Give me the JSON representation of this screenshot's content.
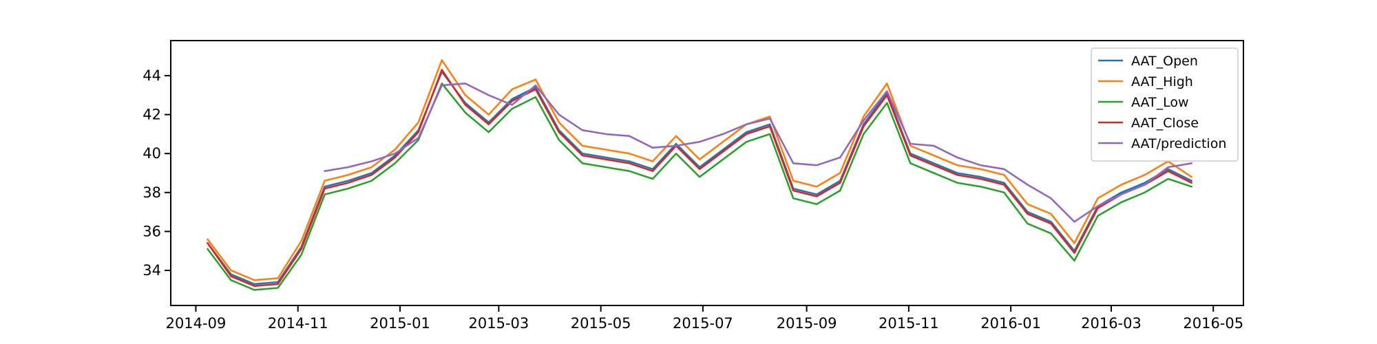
{
  "chart_data": {
    "type": "line",
    "title": "",
    "xlabel": "",
    "ylabel": "",
    "x_range": [
      "2014-08-17",
      "2016-05-19"
    ],
    "ylim": [
      32.2,
      45.8
    ],
    "grid": false,
    "legend_position": "top-right",
    "x_ticks": [
      "2014-09",
      "2014-11",
      "2015-01",
      "2015-03",
      "2015-05",
      "2015-07",
      "2015-09",
      "2015-11",
      "2016-01",
      "2016-03",
      "2016-05"
    ],
    "y_ticks": [
      34,
      36,
      38,
      40,
      42,
      44
    ],
    "dates": [
      "2014-09-08",
      "2014-09-22",
      "2014-10-06",
      "2014-10-20",
      "2014-11-03",
      "2014-11-17",
      "2014-12-01",
      "2014-12-15",
      "2014-12-29",
      "2015-01-12",
      "2015-01-26",
      "2015-02-09",
      "2015-02-23",
      "2015-03-09",
      "2015-03-23",
      "2015-04-06",
      "2015-04-20",
      "2015-05-04",
      "2015-05-18",
      "2015-06-01",
      "2015-06-15",
      "2015-06-29",
      "2015-07-13",
      "2015-07-27",
      "2015-08-10",
      "2015-08-24",
      "2015-09-07",
      "2015-09-21",
      "2015-10-05",
      "2015-10-19",
      "2015-11-02",
      "2015-11-16",
      "2015-11-30",
      "2015-12-14",
      "2015-12-28",
      "2016-01-11",
      "2016-01-25",
      "2016-02-08",
      "2016-02-22",
      "2016-03-07",
      "2016-03-21",
      "2016-04-04",
      "2016-04-18"
    ],
    "series": [
      {
        "name": "AAT_Open",
        "color": "#1f77b4",
        "values": [
          35.4,
          33.8,
          33.3,
          33.4,
          35.2,
          38.3,
          38.6,
          39.0,
          39.9,
          41.2,
          44.2,
          42.6,
          41.6,
          42.8,
          43.4,
          41.2,
          40.0,
          39.8,
          39.6,
          39.2,
          40.5,
          39.3,
          40.2,
          41.1,
          41.5,
          38.2,
          37.9,
          38.6,
          41.5,
          43.1,
          40.0,
          39.5,
          39.0,
          38.8,
          38.5,
          37.0,
          36.5,
          35.0,
          37.3,
          38.0,
          38.5,
          39.2,
          38.6
        ]
      },
      {
        "name": "AAT_High",
        "color": "#ff7f0e",
        "values": [
          35.6,
          34.0,
          33.5,
          33.6,
          35.5,
          38.6,
          38.9,
          39.3,
          40.2,
          41.6,
          44.8,
          43.0,
          42.0,
          43.3,
          43.8,
          41.6,
          40.4,
          40.2,
          40.0,
          39.6,
          40.9,
          39.7,
          40.6,
          41.5,
          41.9,
          38.6,
          38.3,
          39.0,
          41.9,
          43.6,
          40.4,
          39.9,
          39.4,
          39.2,
          38.9,
          37.4,
          36.9,
          35.4,
          37.7,
          38.4,
          38.9,
          39.6,
          38.8
        ]
      },
      {
        "name": "AAT_Low",
        "color": "#2ca02c",
        "values": [
          35.1,
          33.5,
          33.0,
          33.1,
          34.8,
          37.9,
          38.2,
          38.6,
          39.5,
          40.7,
          43.6,
          42.1,
          41.1,
          42.3,
          42.9,
          40.7,
          39.5,
          39.3,
          39.1,
          38.7,
          40.0,
          38.8,
          39.7,
          40.6,
          41.0,
          37.7,
          37.4,
          38.1,
          41.0,
          42.6,
          39.5,
          39.0,
          38.5,
          38.3,
          38.0,
          36.4,
          35.9,
          34.5,
          36.8,
          37.5,
          38.0,
          38.7,
          38.3
        ]
      },
      {
        "name": "AAT_Close",
        "color": "#d62728",
        "values": [
          35.4,
          33.7,
          33.2,
          33.3,
          35.1,
          38.2,
          38.5,
          38.9,
          39.8,
          41.1,
          44.3,
          42.5,
          41.5,
          42.7,
          43.3,
          41.1,
          39.9,
          39.7,
          39.5,
          39.1,
          40.4,
          39.2,
          40.1,
          41.0,
          41.4,
          38.1,
          37.8,
          38.5,
          41.4,
          43.0,
          39.9,
          39.4,
          38.9,
          38.7,
          38.4,
          36.9,
          36.4,
          34.9,
          37.2,
          37.9,
          38.4,
          39.1,
          38.5
        ]
      },
      {
        "name": "AAT/prediction",
        "color": "#9467bd",
        "values": [
          null,
          null,
          null,
          null,
          null,
          39.1,
          39.3,
          39.6,
          40.0,
          40.8,
          43.5,
          43.6,
          43.0,
          42.5,
          43.5,
          42.0,
          41.2,
          41.0,
          40.9,
          40.3,
          40.4,
          40.6,
          41.0,
          41.5,
          41.8,
          39.5,
          39.4,
          39.8,
          41.7,
          43.2,
          40.5,
          40.4,
          39.8,
          39.4,
          39.2,
          38.4,
          37.7,
          36.5,
          37.3,
          37.9,
          38.4,
          39.3,
          39.5
        ]
      }
    ]
  }
}
